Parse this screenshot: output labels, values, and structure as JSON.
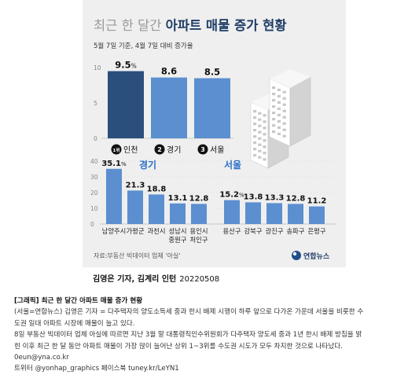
{
  "chart_data": [
    {
      "type": "bar",
      "title_light": "최근 한 달간 ",
      "title_bold": "아파트 매물 증가 현황",
      "subtitle": "5월 7일 기준, 4월 7일 대비 증가율",
      "categories": [
        "인천",
        "경기",
        "서울"
      ],
      "ranks": [
        "1위",
        "2",
        "3"
      ],
      "values": [
        9.5,
        8.6,
        8.5
      ],
      "labels": [
        "9.5",
        "8.6",
        "8.5"
      ],
      "unit": "%",
      "yticks": [
        "0",
        "5",
        "10"
      ],
      "ylim": [
        0,
        10
      ],
      "highlight_color": "#2b4f7c",
      "bar_color": "#5b8fd0"
    },
    {
      "type": "bar",
      "group_label": "경기",
      "categories": [
        "남양주시",
        "가평군",
        "과천시",
        "성남시 중원구",
        "용인시 처인구"
      ],
      "category_lines": [
        [
          "남양주시"
        ],
        [
          "가평군"
        ],
        [
          "과천시"
        ],
        [
          "성남시",
          "중원구"
        ],
        [
          "용인시",
          "처인구"
        ]
      ],
      "values": [
        35.1,
        21.3,
        18.8,
        13.1,
        12.8
      ],
      "labels": [
        "35.1",
        "21.3",
        "18.8",
        "13.1",
        "12.8"
      ],
      "unit": "%",
      "yticks": [
        "0",
        "10",
        "20",
        "30",
        "40"
      ],
      "ylim": [
        0,
        40
      ],
      "bar_color": "#5b8fd0",
      "label_color": "#2a6fc9"
    },
    {
      "type": "bar",
      "group_label": "서울",
      "categories": [
        "용산구",
        "강북구",
        "광진구",
        "송파구",
        "은평구"
      ],
      "category_lines": [
        [
          "용산구"
        ],
        [
          "강북구"
        ],
        [
          "광진구"
        ],
        [
          "송파구"
        ],
        [
          "은평구"
        ]
      ],
      "values": [
        15.2,
        13.8,
        13.3,
        12.8,
        11.2
      ],
      "labels": [
        "15.2",
        "13.8",
        "13.3",
        "12.8",
        "11.2"
      ],
      "unit": "%",
      "ylim": [
        0,
        40
      ],
      "bar_color": "#5b8fd0",
      "label_color": "#2a6fc9"
    }
  ],
  "source": "자료:부동산 빅데이터 업체 '아실'",
  "logo": "연합뉴스",
  "byline": "김영은 기자, 김계리 인턴",
  "date": "20220508",
  "article": {
    "headline": "[그래픽] 최근 한 달간 아파트 매물 증가 현황",
    "lines": [
      "(서울=연합뉴스) 김영은 기자 = 다주택자의 양도소득세 중과 한시 배제 시행이 하루 앞으로 다가온 가운데 서울을 비롯한 수",
      "도권 일대 아파트 시장에 매물이 늘고 있다.",
      "8일 부동산 빅데이터 업체 아실에 따르면 지난 3월 말 대통령직인수위원회가 다주택자 양도세 중과 1년 한시 배제 방침을 밝",
      "힌 이후 최근 한 달 동안 아파트 매물이 가장 많이 늘어난 상위 1~3위를 수도권 시도가 모두 차지한 것으로 나타났다.",
      "0eun@yna.co.kr",
      "트위터 @yonhap_graphics 페이스북 tuney.kr/LeYN1"
    ]
  }
}
